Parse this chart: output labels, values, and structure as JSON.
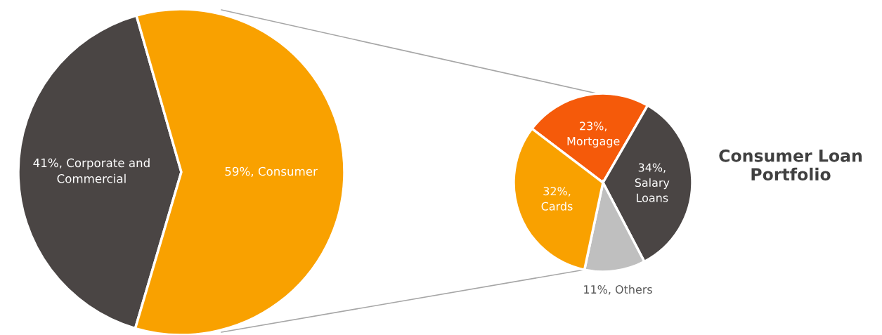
{
  "chart_data": [
    {
      "type": "pie",
      "categories": [
        "Corporate and Commercial",
        "Consumer"
      ],
      "values": [
        41,
        59
      ],
      "colors": [
        "#4a4544",
        "#f9a100"
      ],
      "value_labels": [
        "41%,",
        "59%,"
      ]
    },
    {
      "type": "pie",
      "title": "Consumer Loan\nPortfolio",
      "categories": [
        "Mortgage",
        "Salary Loans",
        "Others",
        "Cards"
      ],
      "values": [
        23,
        34,
        11,
        32
      ],
      "colors": [
        "#f55a0a",
        "#4a4544",
        "#bfbfbf",
        "#f9a100"
      ],
      "value_labels": [
        "23%,",
        "34%,",
        "11%,",
        "32%,"
      ]
    }
  ]
}
